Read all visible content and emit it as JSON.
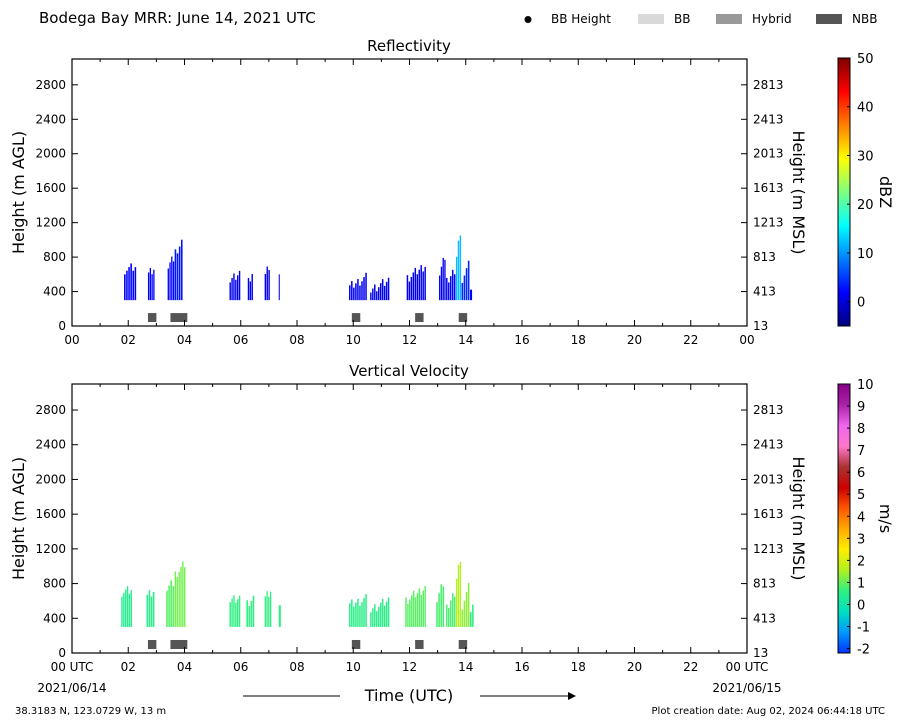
{
  "header": {
    "title": "Bodega Bay MRR:  June 14, 2021 UTC",
    "legend": [
      {
        "label": "BB Height",
        "kind": "dot",
        "color": "#000000"
      },
      {
        "label": "BB",
        "kind": "patch",
        "color": "#d9d9d9"
      },
      {
        "label": "Hybrid",
        "kind": "patch",
        "color": "#999999"
      },
      {
        "label": "NBB",
        "kind": "patch",
        "color": "#555555"
      }
    ]
  },
  "footer": {
    "location": "38.3183 N, 123.0729 W, 13 m",
    "creation": "Plot creation date: Aug 02, 2024 06:44:18 UTC",
    "xlabel": "Time (UTC)",
    "start_utc": "00 UTC",
    "start_date": "2021/06/14",
    "end_utc": "00 UTC",
    "end_date": "2021/06/15"
  },
  "chart_data": [
    {
      "type": "heatmap",
      "title": "Reflectivity",
      "ylabel": "Height (m AGL)",
      "ylabel_right": "Height (m MSL)",
      "xlim": [
        0,
        24
      ],
      "ylim": [
        0,
        3100
      ],
      "xticks": [
        "00",
        "02",
        "04",
        "06",
        "08",
        "10",
        "12",
        "14",
        "16",
        "18",
        "20",
        "22",
        "00"
      ],
      "yticks": [
        0,
        400,
        800,
        1200,
        1600,
        2000,
        2400,
        2800
      ],
      "yticks_right": [
        "13",
        "413",
        "813",
        "1213",
        "1613",
        "2013",
        "2413",
        "2813"
      ],
      "colorbar": {
        "label": "dBZ",
        "range": [
          -5,
          50
        ],
        "ticks": [
          "0",
          "10",
          "20",
          "30",
          "40",
          "50"
        ],
        "tick_values": [
          0,
          10,
          20,
          30,
          40,
          50
        ],
        "colors": [
          "#00007f",
          "#0000ff",
          "#007fff",
          "#00ffff",
          "#7fff7f",
          "#ffff00",
          "#ff7f00",
          "#ff0000",
          "#7f0000"
        ]
      },
      "series": [
        {
          "x": [
            1.85,
            2.3
          ],
          "top": [
            650,
            680
          ],
          "value": 2
        },
        {
          "x": [
            2.7,
            2.95
          ],
          "top": [
            600,
            650
          ],
          "value": 2
        },
        {
          "x": [
            3.4,
            3.65
          ],
          "top": [
            700,
            800
          ],
          "value": 2
        },
        {
          "x": [
            3.65,
            3.95
          ],
          "top": [
            850,
            980
          ],
          "value": 3
        },
        {
          "x": [
            5.6,
            6.0
          ],
          "top": [
            520,
            600
          ],
          "value": 1
        },
        {
          "x": [
            6.25,
            6.45
          ],
          "top": [
            500,
            600
          ],
          "value": 1
        },
        {
          "x": [
            6.85,
            7.05
          ],
          "top": [
            600,
            700
          ],
          "value": 1
        },
        {
          "x": [
            7.35,
            7.4
          ],
          "top": [
            650,
            680
          ],
          "value": 1
        },
        {
          "x": [
            9.85,
            10.5
          ],
          "top": [
            450,
            560
          ],
          "value": 1
        },
        {
          "x": [
            10.6,
            11.3
          ],
          "top": [
            420,
            520
          ],
          "value": 1
        },
        {
          "x": [
            11.9,
            12.6
          ],
          "top": [
            550,
            700
          ],
          "value": 1
        },
        {
          "x": [
            13.05,
            13.3
          ],
          "top": [
            600,
            800
          ],
          "value": 1
        },
        {
          "x": [
            13.3,
            13.65
          ],
          "top": [
            500,
            650
          ],
          "value": 2
        },
        {
          "x": [
            13.65,
            13.85
          ],
          "top": [
            800,
            1100
          ],
          "value": 12
        },
        {
          "x": [
            13.85,
            14.15
          ],
          "top": [
            550,
            700
          ],
          "value": 4
        },
        {
          "x": [
            14.15,
            14.25
          ],
          "top": [
            400,
            500
          ],
          "value": 2
        }
      ],
      "bright_band": [
        {
          "x": [
            2.7,
            3.0
          ],
          "type": "NBB"
        },
        {
          "x": [
            3.5,
            4.1
          ],
          "type": "NBB"
        },
        {
          "x": [
            9.95,
            10.25
          ],
          "type": "NBB"
        },
        {
          "x": [
            12.2,
            12.5
          ],
          "type": "NBB"
        },
        {
          "x": [
            13.75,
            14.05
          ],
          "type": "NBB"
        }
      ]
    },
    {
      "type": "heatmap",
      "title": "Vertical Velocity",
      "ylabel": "Height (m AGL)",
      "ylabel_right": "Height (m MSL)",
      "xlim": [
        0,
        24
      ],
      "ylim": [
        0,
        3100
      ],
      "xticks": [
        "00 UTC",
        "02",
        "04",
        "06",
        "08",
        "10",
        "12",
        "14",
        "16",
        "18",
        "20",
        "22",
        "00 UTC"
      ],
      "yticks": [
        0,
        400,
        800,
        1200,
        1600,
        2000,
        2400,
        2800
      ],
      "yticks_right": [
        "13",
        "413",
        "813",
        "1213",
        "1613",
        "2013",
        "2413",
        "2813"
      ],
      "colorbar": {
        "label": "m/s",
        "range": [
          -2.2,
          10
        ],
        "ticks": [
          "-2",
          "-1",
          "0",
          "1",
          "2",
          "3",
          "4",
          "5",
          "6",
          "7",
          "8",
          "9",
          "10"
        ],
        "tick_values": [
          -2,
          -1,
          0,
          1,
          2,
          3,
          4,
          5,
          6,
          7,
          8,
          9,
          10
        ],
        "colors": [
          "#0033ff",
          "#0099ff",
          "#00e0c0",
          "#30f080",
          "#b0f020",
          "#ffee00",
          "#ffaa00",
          "#ff5500",
          "#cc0000",
          "#aa3333",
          "#ff77cc",
          "#ee66ee",
          "#aa22aa",
          "#880088"
        ]
      },
      "series": [
        {
          "x": [
            1.75,
            2.15
          ],
          "top": [
            700,
            720
          ],
          "value": 0.4
        },
        {
          "x": [
            2.65,
            2.95
          ],
          "top": [
            650,
            700
          ],
          "value": 0.5
        },
        {
          "x": [
            3.35,
            3.65
          ],
          "top": [
            750,
            820
          ],
          "value": 0.9
        },
        {
          "x": [
            3.65,
            4.05
          ],
          "top": [
            900,
            1020
          ],
          "value": 1.1
        },
        {
          "x": [
            5.6,
            6.0
          ],
          "top": [
            600,
            620
          ],
          "value": 0.6
        },
        {
          "x": [
            6.2,
            6.5
          ],
          "top": [
            550,
            620
          ],
          "value": 0.6
        },
        {
          "x": [
            6.85,
            7.1
          ],
          "top": [
            650,
            720
          ],
          "value": 0.6
        },
        {
          "x": [
            7.35,
            7.45
          ],
          "top": [
            600,
            700
          ],
          "value": 0.6
        },
        {
          "x": [
            9.85,
            10.5
          ],
          "top": [
            550,
            620
          ],
          "value": 0.5
        },
        {
          "x": [
            10.6,
            11.3
          ],
          "top": [
            500,
            600
          ],
          "value": 0.5
        },
        {
          "x": [
            11.85,
            12.6
          ],
          "top": [
            600,
            750
          ],
          "value": 0.9
        },
        {
          "x": [
            12.95,
            13.25
          ],
          "top": [
            600,
            800
          ],
          "value": 0.8
        },
        {
          "x": [
            13.3,
            13.65
          ],
          "top": [
            500,
            700
          ],
          "value": 0.8
        },
        {
          "x": [
            13.65,
            13.85
          ],
          "top": [
            850,
            1100
          ],
          "value": 1.6
        },
        {
          "x": [
            13.85,
            14.15
          ],
          "top": [
            550,
            750
          ],
          "value": 1.3
        },
        {
          "x": [
            14.15,
            14.3
          ],
          "top": [
            450,
            500
          ],
          "value": 0.6
        }
      ],
      "bright_band": [
        {
          "x": [
            2.7,
            3.0
          ],
          "type": "NBB"
        },
        {
          "x": [
            3.5,
            4.1
          ],
          "type": "NBB"
        },
        {
          "x": [
            9.95,
            10.25
          ],
          "type": "NBB"
        },
        {
          "x": [
            12.2,
            12.5
          ],
          "type": "NBB"
        },
        {
          "x": [
            13.75,
            14.05
          ],
          "type": "NBB"
        }
      ]
    }
  ]
}
